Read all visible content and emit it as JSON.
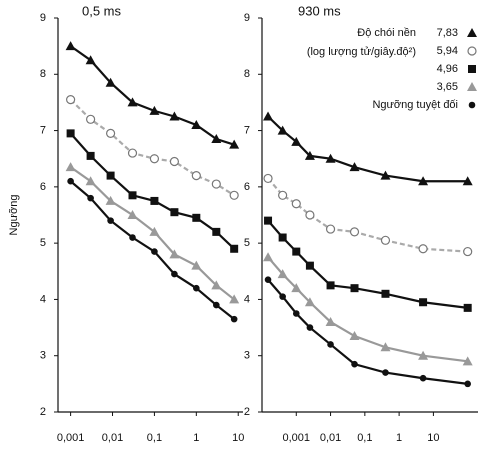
{
  "chart_data": [
    {
      "type": "line",
      "title": "0,5 ms",
      "y_label": "Ngưỡng",
      "xscale": "log",
      "xlim": [
        0.0005,
        13
      ],
      "ylim": [
        2,
        9
      ],
      "xticks": [
        {
          "value": 0.001,
          "label": "0,001"
        },
        {
          "value": 0.01,
          "label": "0,01"
        },
        {
          "value": 0.1,
          "label": "0,1"
        },
        1,
        10
      ],
      "yticks": [
        2,
        3,
        4,
        5,
        6,
        7,
        8,
        9
      ],
      "x": [
        0.001,
        0.003,
        0.009,
        0.03,
        0.1,
        0.3,
        1,
        3,
        8
      ],
      "series": [
        {
          "color": "#111111",
          "marker": "triangle",
          "values": [
            8.5,
            8.25,
            7.85,
            7.5,
            7.35,
            7.25,
            7.1,
            6.85,
            6.75
          ]
        },
        {
          "color": "#aaaaaa",
          "marker": "open-circle",
          "values": [
            7.55,
            7.2,
            6.95,
            6.6,
            6.5,
            6.45,
            6.2,
            6.05,
            5.85
          ]
        },
        {
          "color": "#111111",
          "marker": "square",
          "values": [
            6.95,
            6.55,
            6.2,
            5.85,
            5.75,
            5.55,
            5.45,
            5.2,
            4.9
          ]
        },
        {
          "color": "#999999",
          "marker": "triangle",
          "values": [
            6.35,
            6.1,
            5.75,
            5.5,
            5.2,
            4.8,
            4.6,
            4.25,
            4.0
          ]
        },
        {
          "color": "#111111",
          "marker": "dot",
          "values": [
            6.1,
            5.8,
            5.4,
            5.1,
            4.85,
            4.45,
            4.2,
            3.9,
            3.65
          ]
        }
      ]
    },
    {
      "type": "line",
      "title": "930 ms",
      "xscale": "log",
      "xlim": [
        0.0001,
        200
      ],
      "ylim": [
        2,
        9
      ],
      "xticks": [
        {
          "value": 0.001,
          "label": "0,001"
        },
        {
          "value": 0.01,
          "label": "0,01"
        },
        {
          "value": 0.1,
          "label": "0,1"
        },
        1,
        10
      ],
      "yticks": [
        2,
        3,
        4,
        5,
        6,
        7,
        8,
        9
      ],
      "legend_title": [
        "Độ chói nền",
        "(log lượng tử/giây.độ²)"
      ],
      "x": [
        0.00015,
        0.0004,
        0.001,
        0.0025,
        0.01,
        0.05,
        0.4,
        5,
        100
      ],
      "series": [
        {
          "name": "7,83",
          "color": "#111111",
          "marker": "triangle",
          "values": [
            7.25,
            7.0,
            6.8,
            6.55,
            6.5,
            6.35,
            6.2,
            6.1,
            6.1
          ]
        },
        {
          "name": "5,94",
          "color": "#aaaaaa",
          "marker": "open-circle",
          "values": [
            6.15,
            5.85,
            5.7,
            5.5,
            5.25,
            5.2,
            5.05,
            4.9,
            4.85
          ]
        },
        {
          "name": "4,96",
          "color": "#111111",
          "marker": "square",
          "values": [
            5.4,
            5.1,
            4.85,
            4.6,
            4.25,
            4.2,
            4.1,
            3.95,
            3.85
          ]
        },
        {
          "name": "3,65",
          "color": "#999999",
          "marker": "triangle",
          "values": [
            4.75,
            4.45,
            4.2,
            3.95,
            3.6,
            3.35,
            3.15,
            3.0,
            2.9
          ]
        },
        {
          "name": "Ngưỡng tuyệt đối",
          "color": "#111111",
          "marker": "dot",
          "values": [
            4.35,
            4.05,
            3.75,
            3.5,
            3.2,
            2.85,
            2.7,
            2.6,
            2.5
          ]
        }
      ]
    }
  ]
}
